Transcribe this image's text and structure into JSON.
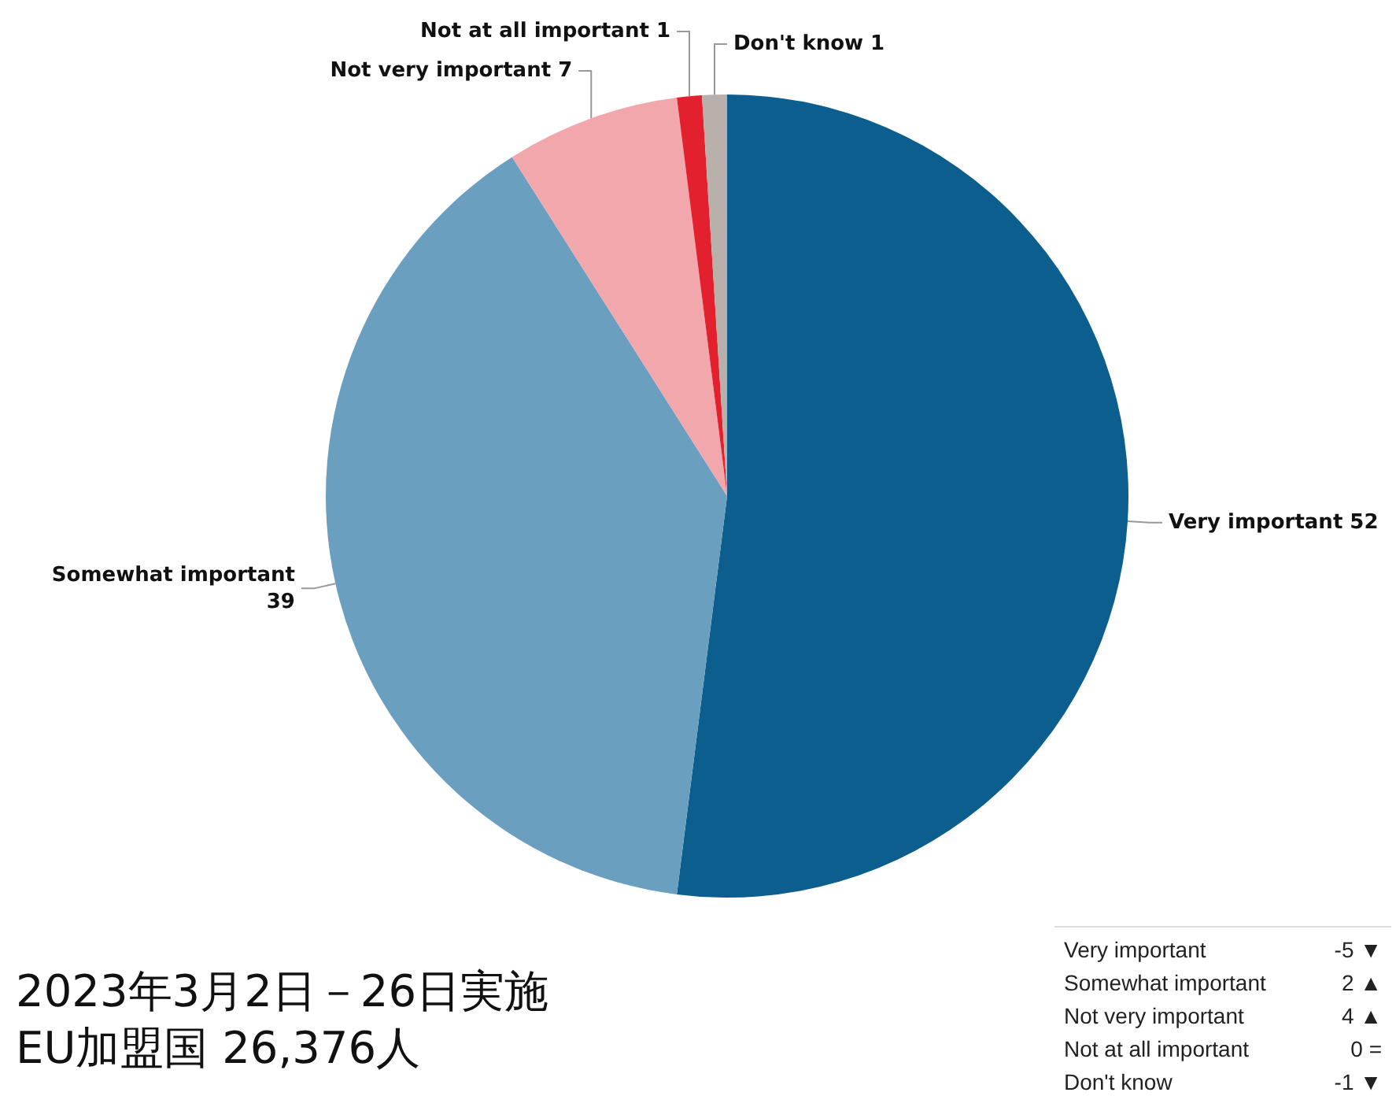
{
  "chart_data": {
    "type": "pie",
    "categories": [
      "Very important",
      "Somewhat important",
      "Not very important",
      "Not at all important",
      "Don't know"
    ],
    "values": [
      52,
      39,
      7,
      1,
      1
    ],
    "colors": [
      "#0b5e8e",
      "#6a9fc0",
      "#f2a7ad",
      "#e3202e",
      "#b8b0ab"
    ],
    "data_labels": true,
    "legend": false,
    "annotations": [
      "2023年3月2日－26日実施",
      "EU加盟国 26,376人",
      "Very important -5 ▼",
      "Somewhat important 2 ▲",
      "Not very important 4 ▲",
      "Not at all important 0 =",
      "Don't know -1 ▼"
    ]
  }
}
